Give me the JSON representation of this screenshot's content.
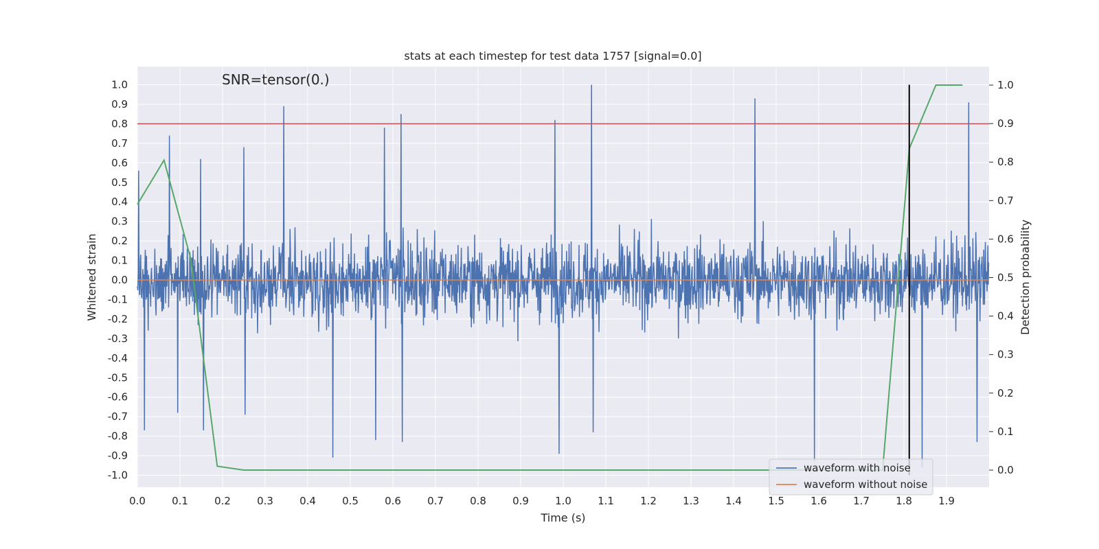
{
  "chart_data": {
    "type": "line",
    "title": "stats at each timestep for test data 1757 [signal=0.0]",
    "xlabel": "Time (s)",
    "ylabel_left": "Whitened strain",
    "ylabel_right": "Detection probability",
    "annotation": "SNR=tensor(0.)",
    "xlim": [
      0.0,
      2.0
    ],
    "ylim_left": [
      -1.07,
      1.1
    ],
    "ylim_right": [
      -0.045,
      1.045
    ],
    "x_ticks": [
      "0.0",
      "0.1",
      "0.2",
      "0.3",
      "0.4",
      "0.5",
      "0.6",
      "0.7",
      "0.8",
      "0.9",
      "1.0",
      "1.1",
      "1.2",
      "1.3",
      "1.4",
      "1.5",
      "1.6",
      "1.7",
      "1.8",
      "1.9"
    ],
    "y_left_ticks": [
      "1.0",
      "0.9",
      "0.8",
      "0.7",
      "0.6",
      "0.5",
      "0.4",
      "0.3",
      "0.2",
      "0.1",
      "0.0",
      "-0.1",
      "-0.2",
      "-0.3",
      "-0.4",
      "-0.5",
      "-0.6",
      "-0.7",
      "-0.8",
      "-0.9",
      "-1.0"
    ],
    "y_right_ticks": [
      "1.0",
      "0.9",
      "0.8",
      "0.7",
      "0.6",
      "0.5",
      "0.4",
      "0.3",
      "0.2",
      "0.1",
      "0.0"
    ],
    "grid": true,
    "legend_position": "lower-right",
    "series": [
      {
        "name": "waveform with noise",
        "axis": "left",
        "color": "#4c72b0",
        "description_samples": 2048,
        "noise_peaks": [
          {
            "x": 0.003,
            "y": 0.56
          },
          {
            "x": 0.017,
            "y": -0.77
          },
          {
            "x": 0.075,
            "y": 0.74
          },
          {
            "x": 0.095,
            "y": -0.68
          },
          {
            "x": 0.148,
            "y": 0.62
          },
          {
            "x": 0.155,
            "y": -0.77
          },
          {
            "x": 0.25,
            "y": 0.68
          },
          {
            "x": 0.253,
            "y": -0.69
          },
          {
            "x": 0.344,
            "y": 0.89
          },
          {
            "x": 0.459,
            "y": -0.91
          },
          {
            "x": 0.56,
            "y": -0.82
          },
          {
            "x": 0.58,
            "y": 0.78
          },
          {
            "x": 0.619,
            "y": 0.85
          },
          {
            "x": 0.622,
            "y": -0.83
          },
          {
            "x": 0.98,
            "y": 0.82
          },
          {
            "x": 0.99,
            "y": -0.89
          },
          {
            "x": 1.066,
            "y": 1.0
          },
          {
            "x": 1.07,
            "y": -0.78
          },
          {
            "x": 1.45,
            "y": 0.93
          },
          {
            "x": 1.59,
            "y": -0.93
          },
          {
            "x": 1.843,
            "y": -0.96
          },
          {
            "x": 1.952,
            "y": 0.91
          },
          {
            "x": 1.972,
            "y": -0.83
          }
        ]
      },
      {
        "name": "waveform without noise",
        "axis": "left",
        "color": "#dd8452",
        "x": [
          0.0,
          2.0
        ],
        "y": [
          0.0,
          0.0
        ]
      },
      {
        "name": "detection probability",
        "axis": "right",
        "color": "#55a868",
        "x": [
          0.0,
          0.0625,
          0.125,
          0.1875,
          0.25,
          1.75,
          1.8125,
          1.875,
          1.9375
        ],
        "y": [
          0.69,
          0.805,
          0.55,
          0.01,
          0.0,
          0.0,
          0.835,
          1.0,
          1.0
        ]
      }
    ],
    "threshold_line": {
      "value": 0.8,
      "axis": "left",
      "color": "#c44e52"
    },
    "vertical_marker": {
      "x": 1.8125,
      "y_range": [
        -1.0,
        1.0
      ],
      "color": "#000000"
    }
  }
}
